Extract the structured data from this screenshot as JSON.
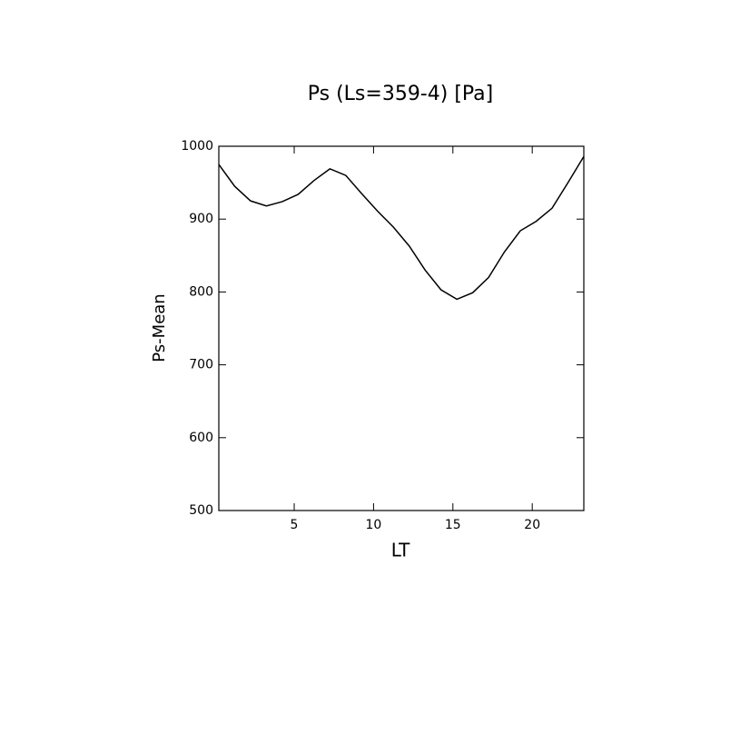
{
  "chart_data": {
    "type": "line",
    "title": "Ps (Ls=359-4) [Pa]",
    "x_label": "LT",
    "y_label": "Ps-Mean",
    "x": [
      0.25,
      1.25,
      2.25,
      3.25,
      4.25,
      5.25,
      6.25,
      7.25,
      8.25,
      9.25,
      10.25,
      11.25,
      12.25,
      13.25,
      14.25,
      15.25,
      16.25,
      17.25,
      18.25,
      19.25,
      20.25,
      21.25,
      22.25,
      23.25
    ],
    "series": [
      {
        "color": "#000000",
        "values": [
          975,
          945,
          925,
          918,
          924,
          934,
          953,
          969,
          960,
          935,
          911,
          889,
          863,
          830,
          803,
          790,
          799,
          820,
          855,
          884,
          897,
          915,
          950,
          986
        ]
      }
    ],
    "xlim": [
      0.25,
      23.25
    ],
    "ylim": [
      500,
      1000
    ],
    "xticks": [
      5,
      10,
      15,
      20
    ],
    "yticks": [
      500,
      600,
      700,
      800,
      900,
      1000
    ],
    "grid": false
  }
}
